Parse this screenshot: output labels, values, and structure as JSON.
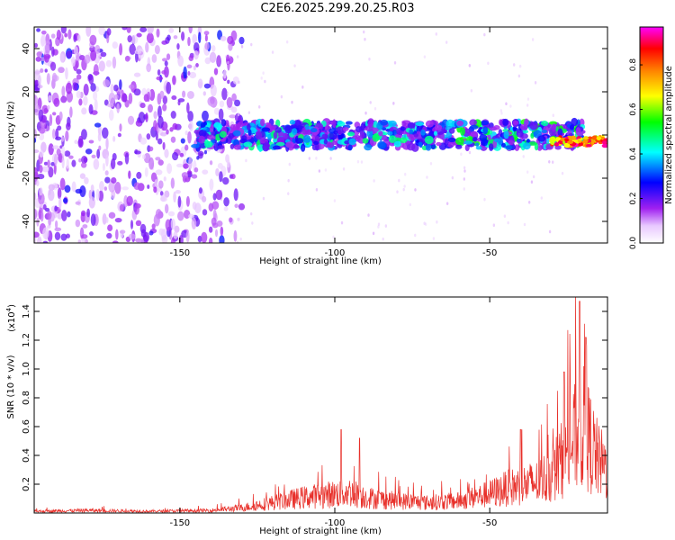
{
  "title": "C2E6.2025.299.20.25.R03",
  "chart_data": [
    {
      "type": "heatmap",
      "name": "spectrogram",
      "xlabel": "Height of straight line (km)",
      "ylabel": "Frequency (Hz)",
      "xlim": [
        -197,
        -12
      ],
      "ylim": [
        -50,
        50
      ],
      "xticks": [
        -150,
        -100,
        -50
      ],
      "yticks": [
        -40,
        -20,
        0,
        20,
        40
      ],
      "colorbar": {
        "label": "Normalized spectral amplitude",
        "range": [
          0,
          0.97
        ],
        "ticks": [
          0.0,
          0.2,
          0.4,
          0.6,
          0.8
        ],
        "tick_labels": [
          "0.0",
          "0.2",
          "0.4",
          "0.6",
          "0.8"
        ],
        "colormap": [
          "#ffffff",
          "#e8c8ff",
          "#a020f0",
          "#0000ff",
          "#00ffff",
          "#00ff00",
          "#ffff00",
          "#ff8000",
          "#ff0000",
          "#ff00ff"
        ]
      },
      "description_of_structure": [
        {
          "region": "noise scatter",
          "x_range": [
            -197,
            -130
          ],
          "freq_spread": [
            -50,
            50
          ],
          "amplitude": [
            0.05,
            0.2
          ]
        },
        {
          "region": "signal band",
          "x_range": [
            -145,
            -20
          ],
          "freq_center": 0,
          "freq_halfwidth": 6,
          "amplitude": [
            0.15,
            0.5
          ]
        },
        {
          "region": "strong tail",
          "x_range": [
            -30,
            -12
          ],
          "freq_center": -3,
          "freq_halfwidth": 2,
          "amplitude": [
            0.6,
            0.95
          ]
        }
      ]
    },
    {
      "type": "line",
      "name": "snr",
      "xlabel": "Height of straight line (km)",
      "ylabel": "SNR (10 * v/v)",
      "y_multiplier": "(x10^4)",
      "multiplier_base": "(x10",
      "multiplier_exp": "4",
      "xlim": [
        -197,
        -12
      ],
      "ylim": [
        0,
        1.5
      ],
      "xticks": [
        -150,
        -100,
        -50
      ],
      "yticks": [
        0.2,
        0.4,
        0.6,
        0.8,
        1.0,
        1.2,
        1.4
      ],
      "ytick_labels": [
        "0.2",
        "0.4",
        "0.6",
        "0.8",
        "1.0",
        "1.2",
        "1.4"
      ],
      "color": "#e8302a",
      "envelope": {
        "x": [
          -197,
          -180,
          -160,
          -140,
          -130,
          -120,
          -110,
          -100,
          -95,
          -90,
          -80,
          -70,
          -60,
          -55,
          -50,
          -45,
          -40,
          -35,
          -30,
          -25,
          -22,
          -20,
          -18,
          -15,
          -12
        ],
        "y": [
          0.02,
          0.03,
          0.02,
          0.03,
          0.06,
          0.12,
          0.18,
          0.22,
          0.24,
          0.18,
          0.14,
          0.12,
          0.14,
          0.18,
          0.22,
          0.28,
          0.32,
          0.35,
          0.45,
          0.7,
          0.9,
          1.0,
          0.85,
          0.6,
          0.5
        ]
      },
      "peaks": [
        {
          "x": -98,
          "y": 0.58
        },
        {
          "x": -92,
          "y": 0.52
        },
        {
          "x": -40,
          "y": 0.58
        },
        {
          "x": -26,
          "y": 0.98
        },
        {
          "x": -21,
          "y": 1.47
        },
        {
          "x": -19,
          "y": 1.22
        }
      ]
    }
  ]
}
